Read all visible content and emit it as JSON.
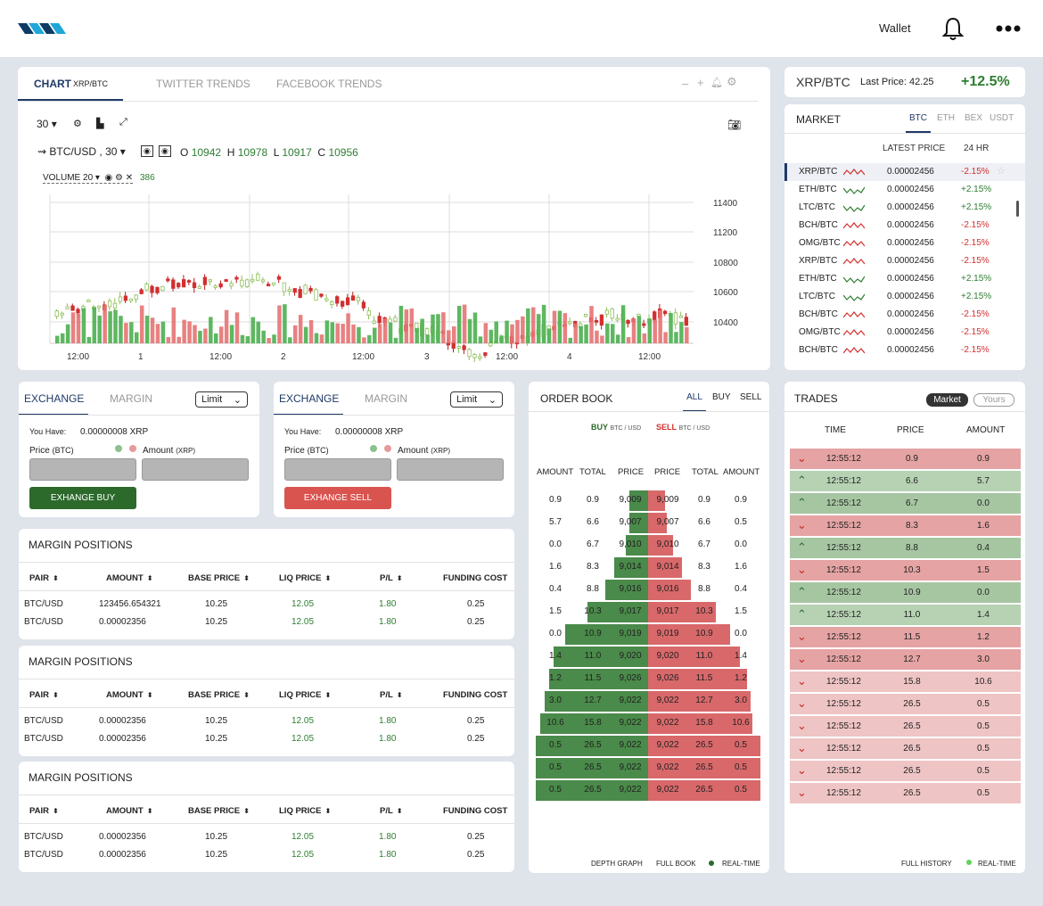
{
  "header": {
    "wallet_label": "Wallet"
  },
  "chart_panel": {
    "tabs": [
      {
        "label": "CHART",
        "sub": "XRP/BTC"
      },
      {
        "label": "TWITTER TRENDS"
      },
      {
        "label": "FACEBOOK TRENDS"
      }
    ],
    "interval": "30",
    "symbol": "BTC/USD , 30",
    "ohlc": {
      "o_label": "O",
      "o": "10942",
      "h_label": "H",
      "h": "10978",
      "l_label": "L",
      "l": "10917",
      "c_label": "C",
      "c": "10956"
    },
    "volume_label": "VOLUME 20",
    "volume_value": "386",
    "y_ticks": [
      "11400",
      "11200",
      "10800",
      "10600",
      "10400"
    ],
    "x_ticks": [
      "12:00",
      "1",
      "12:00",
      "2",
      "12:00",
      "3",
      "12:00",
      "4",
      "12:00"
    ]
  },
  "chart_data": {
    "type": "candlestick",
    "y_ticks_values": [
      11400,
      11200,
      10800,
      10600,
      10400
    ],
    "x_ticks": [
      "12:00",
      "1",
      "12:00",
      "2",
      "12:00",
      "3",
      "12:00",
      "4",
      "12:00"
    ],
    "last_ohlc": {
      "open": 10942,
      "high": 10978,
      "low": 10917,
      "close": 10956
    },
    "volume_ma_length": 20,
    "volume_last": 386
  },
  "ticker": {
    "pair": "XRP/BTC",
    "last_price_label": "Last Price: 42.25",
    "change": "+12.5%"
  },
  "market": {
    "title": "MARKET",
    "tabs": [
      "BTC",
      "ETH",
      "BEX",
      "USDT"
    ],
    "col_price": "LATEST PRICE",
    "col_change": "24 HR",
    "rows": [
      {
        "pair": "XRP/BTC",
        "price": "0.00002456",
        "change": "-2.15%",
        "dir": "down"
      },
      {
        "pair": "ETH/BTC",
        "price": "0.00002456",
        "change": "+2.15%",
        "dir": "up"
      },
      {
        "pair": "LTC/BTC",
        "price": "0.00002456",
        "change": "+2.15%",
        "dir": "up"
      },
      {
        "pair": "BCH/BTC",
        "price": "0.00002456",
        "change": "-2.15%",
        "dir": "down"
      },
      {
        "pair": "OMG/BTC",
        "price": "0.00002456",
        "change": "-2.15%",
        "dir": "down"
      },
      {
        "pair": "XRP/BTC",
        "price": "0.00002456",
        "change": "-2.15%",
        "dir": "down"
      },
      {
        "pair": "ETH/BTC",
        "price": "0.00002456",
        "change": "+2.15%",
        "dir": "up"
      },
      {
        "pair": "LTC/BTC",
        "price": "0.00002456",
        "change": "+2.15%",
        "dir": "up"
      },
      {
        "pair": "BCH/BTC",
        "price": "0.00002456",
        "change": "-2.15%",
        "dir": "down"
      },
      {
        "pair": "OMG/BTC",
        "price": "0.00002456",
        "change": "-2.15%",
        "dir": "down"
      },
      {
        "pair": "BCH/BTC",
        "price": "0.00002456",
        "change": "-2.15%",
        "dir": "down"
      }
    ]
  },
  "exchange_buy": {
    "tab_exchange": "EXCHANGE",
    "tab_margin": "MARGIN",
    "order_type": "Limit",
    "you_have_label": "You Have:",
    "you_have_value": "0.00000008 XRP",
    "price_label": "Price",
    "price_unit": "(BTC)",
    "amount_label": "Amount",
    "amount_unit": "(XRP)",
    "button": "EXHANGE BUY"
  },
  "exchange_sell": {
    "tab_exchange": "EXCHANGE",
    "tab_margin": "MARGIN",
    "order_type": "Limit",
    "you_have_label": "You Have:",
    "you_have_value": "0.00000008 XRP",
    "price_label": "Price",
    "price_unit": "(BTC)",
    "amount_label": "Amount",
    "amount_unit": "(XRP)",
    "button": "EXHANGE SELL"
  },
  "margin_positions": {
    "title": "MARGIN POSITIONS",
    "columns": [
      "PAIR",
      "AMOUNT",
      "BASE PRICE",
      "LIQ PRICE",
      "P/L",
      "FUNDING COST"
    ],
    "tables": [
      [
        [
          "BTC/USD",
          "123456.654321",
          "10.25",
          "12.05",
          "1.80",
          "0.25"
        ],
        [
          "BTC/USD",
          "0.00002356",
          "10.25",
          "12.05",
          "1.80",
          "0.25"
        ]
      ],
      [
        [
          "BTC/USD",
          "0.00002356",
          "10.25",
          "12.05",
          "1.80",
          "0.25"
        ],
        [
          "BTC/USD",
          "0.00002356",
          "10.25",
          "12.05",
          "1.80",
          "0.25"
        ]
      ],
      [
        [
          "BTC/USD",
          "0.00002356",
          "10.25",
          "12.05",
          "1.80",
          "0.25"
        ],
        [
          "BTC/USD",
          "0.00002356",
          "10.25",
          "12.05",
          "1.80",
          "0.25"
        ]
      ]
    ]
  },
  "order_book": {
    "title": "ORDER BOOK",
    "filters": [
      "ALL",
      "BUY",
      "SELL"
    ],
    "buy_label": "BUY",
    "sell_label": "SELL",
    "pair_sub": "BTC / USD",
    "columns": [
      "AMOUNT",
      "TOTAL",
      "PRICE",
      "PRICE",
      "TOTAL",
      "AMOUNT"
    ],
    "rows": [
      {
        "b_amt": "0.9",
        "b_tot": "0.9",
        "b_price": "9,009",
        "s_price": "9,009",
        "s_tot": "0.9",
        "s_amt": "0.9",
        "b_depth": 0.17,
        "s_depth": 0.15
      },
      {
        "b_amt": "5.7",
        "b_tot": "6.6",
        "b_price": "9,007",
        "s_price": "9,007",
        "s_tot": "6.6",
        "s_amt": "0.5",
        "b_depth": 0.17,
        "s_depth": 0.17
      },
      {
        "b_amt": "0.0",
        "b_tot": "6.7",
        "b_price": "9,010",
        "s_price": "9,010",
        "s_tot": "6.7",
        "s_amt": "0.0",
        "b_depth": 0.2,
        "s_depth": 0.22
      },
      {
        "b_amt": "1.6",
        "b_tot": "8.3",
        "b_price": "9,014",
        "s_price": "9,014",
        "s_tot": "8.3",
        "s_amt": "1.6",
        "b_depth": 0.3,
        "s_depth": 0.3
      },
      {
        "b_amt": "0.4",
        "b_tot": "8.8",
        "b_price": "9,016",
        "s_price": "9,016",
        "s_tot": "8.8",
        "s_amt": "0.4",
        "b_depth": 0.38,
        "s_depth": 0.38
      },
      {
        "b_amt": "1.5",
        "b_tot": "10.3",
        "b_price": "9,017",
        "s_price": "9,017",
        "s_tot": "10.3",
        "s_amt": "1.5",
        "b_depth": 0.54,
        "s_depth": 0.6
      },
      {
        "b_amt": "0.0",
        "b_tot": "10.9",
        "b_price": "9,019",
        "s_price": "9,019",
        "s_tot": "10.9",
        "s_amt": "0.0",
        "b_depth": 0.74,
        "s_depth": 0.73
      },
      {
        "b_amt": "1.4",
        "b_tot": "11.0",
        "b_price": "9,020",
        "s_price": "9,020",
        "s_tot": "11.0",
        "s_amt": "1.4",
        "b_depth": 0.84,
        "s_depth": 0.82
      },
      {
        "b_amt": "1.2",
        "b_tot": "11.5",
        "b_price": "9,026",
        "s_price": "9,026",
        "s_tot": "11.5",
        "s_amt": "1.2",
        "b_depth": 0.88,
        "s_depth": 0.88
      },
      {
        "b_amt": "3.0",
        "b_tot": "12.7",
        "b_price": "9,022",
        "s_price": "9,022",
        "s_tot": "12.7",
        "s_amt": "3.0",
        "b_depth": 0.92,
        "s_depth": 0.91
      },
      {
        "b_amt": "10.6",
        "b_tot": "15.8",
        "b_price": "9,022",
        "s_price": "9,022",
        "s_tot": "15.8",
        "s_amt": "10.6",
        "b_depth": 0.96,
        "s_depth": 0.93
      },
      {
        "b_amt": "0.5",
        "b_tot": "26.5",
        "b_price": "9,022",
        "s_price": "9,022",
        "s_tot": "26.5",
        "s_amt": "0.5",
        "b_depth": 1.0,
        "s_depth": 1.0
      },
      {
        "b_amt": "0.5",
        "b_tot": "26.5",
        "b_price": "9,022",
        "s_price": "9,022",
        "s_tot": "26.5",
        "s_amt": "0.5",
        "b_depth": 1.0,
        "s_depth": 1.0
      },
      {
        "b_amt": "0.5",
        "b_tot": "26.5",
        "b_price": "9,022",
        "s_price": "9,022",
        "s_tot": "26.5",
        "s_amt": "0.5",
        "b_depth": 1.0,
        "s_depth": 1.0
      }
    ],
    "footer": {
      "depth": "DEPTH GRAPH",
      "full": "FULL BOOK",
      "realtime": "REAL-TIME"
    }
  },
  "trades": {
    "title": "TRADES",
    "toggle_market": "Market",
    "toggle_yours": "Yours",
    "columns": [
      "TIME",
      "PRICE",
      "AMOUNT"
    ],
    "rows": [
      {
        "time": "12:55:12",
        "price": "0.9",
        "amount": "0.9",
        "dir": "down"
      },
      {
        "time": "12:55:12",
        "price": "6.6",
        "amount": "5.7",
        "dir": "up"
      },
      {
        "time": "12:55:12",
        "price": "6.7",
        "amount": "0.0",
        "dir": "up"
      },
      {
        "time": "12:55:12",
        "price": "8.3",
        "amount": "1.6",
        "dir": "down"
      },
      {
        "time": "12:55:12",
        "price": "8.8",
        "amount": "0.4",
        "dir": "up"
      },
      {
        "time": "12:55:12",
        "price": "10.3",
        "amount": "1.5",
        "dir": "down"
      },
      {
        "time": "12:55:12",
        "price": "10.9",
        "amount": "0.0",
        "dir": "up"
      },
      {
        "time": "12:55:12",
        "price": "11.0",
        "amount": "1.4",
        "dir": "up"
      },
      {
        "time": "12:55:12",
        "price": "11.5",
        "amount": "1.2",
        "dir": "down"
      },
      {
        "time": "12:55:12",
        "price": "12.7",
        "amount": "3.0",
        "dir": "down"
      },
      {
        "time": "12:55:12",
        "price": "15.8",
        "amount": "10.6",
        "dir": "down"
      },
      {
        "time": "12:55:12",
        "price": "26.5",
        "amount": "0.5",
        "dir": "down"
      },
      {
        "time": "12:55:12",
        "price": "26.5",
        "amount": "0.5",
        "dir": "down"
      },
      {
        "time": "12:55:12",
        "price": "26.5",
        "amount": "0.5",
        "dir": "down"
      },
      {
        "time": "12:55:12",
        "price": "26.5",
        "amount": "0.5",
        "dir": "down"
      },
      {
        "time": "12:55:12",
        "price": "26.5",
        "amount": "0.5",
        "dir": "down"
      }
    ],
    "footer": {
      "history": "FULL HISTORY",
      "realtime": "REAL-TIME"
    }
  },
  "colors": {
    "green": "#2e7d32",
    "red": "#d32f2f",
    "navy": "#1f3a68",
    "accent": "#1ea7d8"
  }
}
